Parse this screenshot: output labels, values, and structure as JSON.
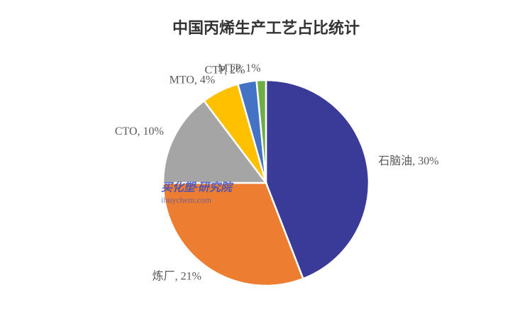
{
  "chart_data": {
    "type": "pie",
    "title": "中国丙烯生产工艺占比统计",
    "values": [
      30,
      21,
      10,
      4,
      2,
      1
    ],
    "value_labels": [
      "石脑油, 30%",
      "炼厂, 21%",
      "CTO, 10%",
      "MTO, 4%",
      "CTP, 2%",
      "MTP, 1%"
    ],
    "colors": [
      "#3a3a98",
      "#ed7d31",
      "#a5a5a5",
      "#ffc000",
      "#4472c4",
      "#70ad47"
    ],
    "watermark": {
      "name": "买化塑·研究院",
      "site": "ibuychem.com"
    }
  }
}
